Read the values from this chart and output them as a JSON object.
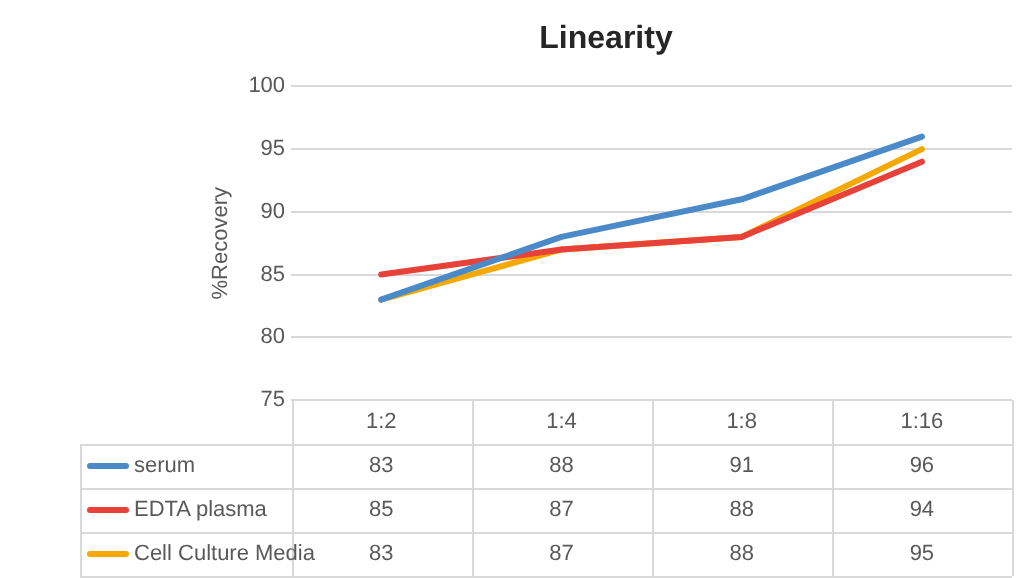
{
  "chart_data": {
    "type": "line",
    "title": "Linearity",
    "ylabel": "%Recovery",
    "categories": [
      "1:2",
      "1:4",
      "1:8",
      "1:16"
    ],
    "series": [
      {
        "name": "serum",
        "color": "#4a8ac9",
        "values": [
          83,
          88,
          91,
          96
        ]
      },
      {
        "name": "EDTA plasma",
        "color": "#e8413a",
        "values": [
          85,
          87,
          88,
          94
        ]
      },
      {
        "name": "Cell Culture Media",
        "color": "#f5a800",
        "values": [
          83,
          87,
          88,
          95
        ]
      }
    ],
    "ylim": [
      75,
      100
    ],
    "yticks": [
      75,
      80,
      85,
      90,
      95,
      100
    ],
    "grid": "y",
    "legend": "bottom",
    "data_labels": true,
    "marker": "none"
  }
}
